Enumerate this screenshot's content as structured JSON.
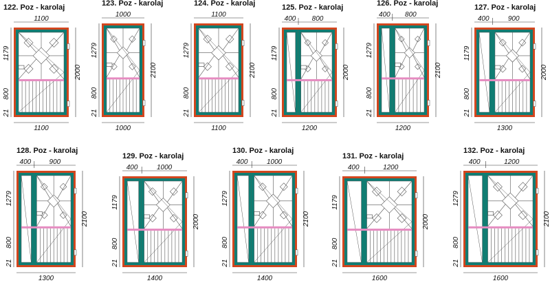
{
  "colors": {
    "outer_frame": "#d2461e",
    "inner_frame": "#0e7d73",
    "glass": "#ffffff",
    "transom_bar": "#e58bc0",
    "lines": "#555555"
  },
  "drawings": [
    {
      "title": "122. Poz - karolaj",
      "top_dims": [
        "1100"
      ],
      "bottom_dim": "1100",
      "left_dims": [
        "1179",
        "800",
        "21"
      ],
      "height_dim": "2000",
      "side_panel": false
    },
    {
      "title": "123. Poz - karolaj",
      "top_dims": [
        "1000"
      ],
      "bottom_dim": "1000",
      "left_dims": [
        "1279",
        "800",
        "21"
      ],
      "height_dim": "2100",
      "side_panel": false
    },
    {
      "title": "124. Poz - karolaj",
      "top_dims": [
        "1100"
      ],
      "bottom_dim": "1100",
      "left_dims": [
        "1279",
        "800",
        "21"
      ],
      "height_dim": "2100",
      "side_panel": false
    },
    {
      "title": "125. Poz - karolaj",
      "top_dims": [
        "400",
        "800"
      ],
      "bottom_dim": "1200",
      "left_dims": [
        "1179",
        "800",
        "21"
      ],
      "height_dim": "2000",
      "side_panel": true
    },
    {
      "title": "126. Poz - karolaj",
      "top_dims": [
        "400",
        "800"
      ],
      "bottom_dim": "1200",
      "left_dims": [
        "1279",
        "800",
        "21"
      ],
      "height_dim": "2100",
      "side_panel": true
    },
    {
      "title": "127. Poz - karolaj",
      "top_dims": [
        "400",
        "900"
      ],
      "bottom_dim": "1300",
      "left_dims": [
        "1179",
        "800",
        "21"
      ],
      "height_dim": "2000",
      "side_panel": true
    },
    {
      "title": "128. Poz - karolaj",
      "top_dims": [
        "400",
        "900"
      ],
      "bottom_dim": "1300",
      "left_dims": [
        "1279",
        "800",
        "21"
      ],
      "height_dim": "2100",
      "side_panel": true
    },
    {
      "title": "129. Poz - karolaj",
      "top_dims": [
        "400",
        "1000"
      ],
      "bottom_dim": "1400",
      "left_dims": [
        "1179",
        "800",
        "21"
      ],
      "height_dim": "2000",
      "side_panel": true
    },
    {
      "title": "130. Poz - karolaj",
      "top_dims": [
        "400",
        "1000"
      ],
      "bottom_dim": "1400",
      "left_dims": [
        "1279",
        "800",
        "21"
      ],
      "height_dim": "2100",
      "side_panel": true
    },
    {
      "title": "131. Poz - karolaj",
      "top_dims": [
        "400",
        "1200"
      ],
      "bottom_dim": "1600",
      "left_dims": [
        "1179",
        "800",
        "21"
      ],
      "height_dim": "2000",
      "side_panel": true
    },
    {
      "title": "132. Poz - karolaj",
      "top_dims": [
        "400",
        "1200"
      ],
      "bottom_dim": "1600",
      "left_dims": [
        "1279",
        "800",
        "21"
      ],
      "height_dim": "2100",
      "side_panel": true
    }
  ]
}
